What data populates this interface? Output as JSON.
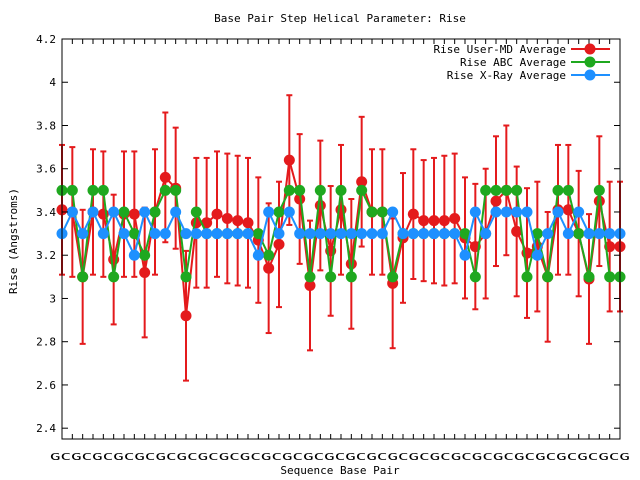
{
  "chart_data": {
    "type": "line",
    "title": "Base Pair Step Helical Parameter: Rise",
    "xlabel": "Sequence Base Pair",
    "ylabel": "Rise (Angstroms)",
    "ylim": [
      2.35,
      4.2
    ],
    "yticks": [
      "2.4",
      "2.6",
      "2.8",
      "3",
      "3.2",
      "3.4",
      "3.6",
      "3.8",
      "4",
      "4.2"
    ],
    "grid": false,
    "legend_position": "top-right",
    "x_tick_labels": [
      "GCGCGCGCGCGCGCGCGCGCGCGCGCGCGCGCGCGCGCGCGCGCGCGCGCGCGCG"
    ],
    "x_count": 55,
    "series": [
      {
        "name": "Rise User-MD Average",
        "color": "#e41a1c",
        "values": [
          3.41,
          3.4,
          3.1,
          3.4,
          3.39,
          3.18,
          3.39,
          3.39,
          3.12,
          3.4,
          3.56,
          3.51,
          2.92,
          3.35,
          3.35,
          3.39,
          3.37,
          3.36,
          3.35,
          3.27,
          3.14,
          3.25,
          3.64,
          3.46,
          3.06,
          3.43,
          3.22,
          3.41,
          3.16,
          3.54,
          3.4,
          3.4,
          3.07,
          3.28,
          3.39,
          3.36,
          3.36,
          3.36,
          3.37,
          3.28,
          3.24,
          3.3,
          3.45,
          3.5,
          3.31,
          3.21,
          3.24,
          3.1,
          3.41,
          3.41,
          3.3,
          3.09,
          3.45,
          3.24,
          3.24
        ],
        "errors": [
          0.3,
          0.3,
          0.31,
          0.29,
          0.29,
          0.3,
          0.29,
          0.29,
          0.3,
          0.29,
          0.3,
          0.28,
          0.3,
          0.3,
          0.3,
          0.29,
          0.3,
          0.3,
          0.3,
          0.29,
          0.3,
          0.29,
          0.3,
          0.3,
          0.3,
          0.3,
          0.3,
          0.3,
          0.3,
          0.3,
          0.29,
          0.29,
          0.3,
          0.3,
          0.3,
          0.28,
          0.29,
          0.3,
          0.3,
          0.28,
          0.29,
          0.3,
          0.3,
          0.3,
          0.3,
          0.3,
          0.3,
          0.3,
          0.3,
          0.3,
          0.29,
          0.3,
          0.3,
          0.3,
          0.3
        ]
      },
      {
        "name": "Rise ABC Average",
        "color": "#1fa81f",
        "values": [
          3.5,
          3.5,
          3.1,
          3.5,
          3.5,
          3.1,
          3.4,
          3.3,
          3.2,
          3.4,
          3.5,
          3.5,
          3.1,
          3.4,
          3.3,
          3.3,
          3.3,
          3.3,
          3.3,
          3.3,
          3.2,
          3.4,
          3.5,
          3.5,
          3.1,
          3.5,
          3.1,
          3.5,
          3.1,
          3.5,
          3.4,
          3.4,
          3.1,
          3.3,
          3.3,
          3.3,
          3.3,
          3.3,
          3.3,
          3.3,
          3.1,
          3.5,
          3.5,
          3.5,
          3.5,
          3.1,
          3.3,
          3.1,
          3.5,
          3.5,
          3.3,
          3.1,
          3.5,
          3.1,
          3.1
        ]
      },
      {
        "name": "Rise X-Ray Average",
        "color": "#1e90ff",
        "values": [
          3.3,
          3.4,
          3.3,
          3.4,
          3.3,
          3.4,
          3.3,
          3.2,
          3.4,
          3.3,
          3.3,
          3.4,
          3.3,
          3.3,
          3.3,
          3.3,
          3.3,
          3.3,
          3.3,
          3.2,
          3.4,
          3.3,
          3.4,
          3.3,
          3.3,
          3.3,
          3.3,
          3.3,
          3.3,
          3.3,
          3.3,
          3.3,
          3.4,
          3.3,
          3.3,
          3.3,
          3.3,
          3.3,
          3.3,
          3.2,
          3.4,
          3.3,
          3.4,
          3.4,
          3.4,
          3.4,
          3.2,
          3.3,
          3.4,
          3.3,
          3.4,
          3.3,
          3.3,
          3.3,
          3.3
        ]
      }
    ]
  }
}
